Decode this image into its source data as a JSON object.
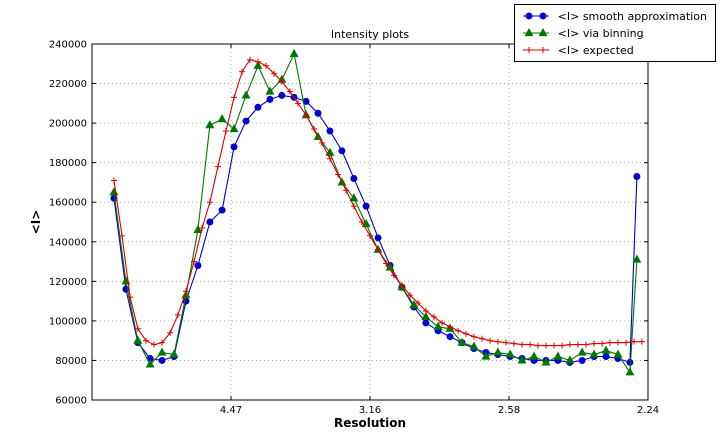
{
  "figure": {
    "title": "Intensity plots",
    "xlabel": "Resolution",
    "ylabel": "<I>"
  },
  "chart_data": {
    "type": "line",
    "title": "Intensity plots",
    "xlabel": "Resolution",
    "ylabel": "<I>",
    "grid": true,
    "legend_position": "upper right, outside plot top",
    "x_axis_note": "x axis is resolution on a 1/d^2 scale; tick labels give d in Angstrom",
    "xlim": [
      0.0,
      0.2
    ],
    "ylim": [
      60000,
      240000
    ],
    "xticks": [
      {
        "value": 0.05,
        "label": "4.47"
      },
      {
        "value": 0.1,
        "label": "3.16"
      },
      {
        "value": 0.15,
        "label": "2.58"
      },
      {
        "value": 0.2,
        "label": "2.24"
      }
    ],
    "yticks": [
      {
        "value": 60000,
        "label": "60000"
      },
      {
        "value": 80000,
        "label": "80000"
      },
      {
        "value": 100000,
        "label": "100000"
      },
      {
        "value": 120000,
        "label": "120000"
      },
      {
        "value": 140000,
        "label": "140000"
      },
      {
        "value": 160000,
        "label": "160000"
      },
      {
        "value": 180000,
        "label": "180000"
      },
      {
        "value": 200000,
        "label": "200000"
      },
      {
        "value": 220000,
        "label": "220000"
      },
      {
        "value": 240000,
        "label": "240000"
      }
    ],
    "series": [
      {
        "name": "<I> smooth approximation",
        "color": "#0000cc",
        "marker": "circle",
        "x": [
          0.0079,
          0.0122,
          0.0165,
          0.0209,
          0.0252,
          0.0295,
          0.0338,
          0.0381,
          0.0424,
          0.0468,
          0.0511,
          0.0554,
          0.0597,
          0.064,
          0.0683,
          0.0727,
          0.077,
          0.0813,
          0.0856,
          0.0899,
          0.0942,
          0.0986,
          0.1029,
          0.1072,
          0.1115,
          0.1158,
          0.1201,
          0.1245,
          0.1288,
          0.1331,
          0.1374,
          0.1417,
          0.146,
          0.1504,
          0.1547,
          0.159,
          0.1633,
          0.1676,
          0.1719,
          0.1763,
          0.1806,
          0.1849,
          0.1892,
          0.1935,
          0.196
        ],
        "y": [
          162000,
          116000,
          89000,
          81000,
          80000,
          82000,
          110000,
          128000,
          150000,
          156000,
          188000,
          201000,
          208000,
          212000,
          214000,
          213000,
          211000,
          205000,
          196000,
          186000,
          172000,
          158000,
          142000,
          128000,
          117000,
          107000,
          99000,
          95000,
          92000,
          89000,
          86000,
          84000,
          83000,
          82000,
          81000,
          80000,
          80000,
          80000,
          79000,
          80000,
          82000,
          82000,
          81000,
          79000,
          173000
        ]
      },
      {
        "name": "<I> via binning",
        "color": "#007700",
        "marker": "triangle",
        "x": [
          0.0079,
          0.0122,
          0.0165,
          0.0209,
          0.0252,
          0.0295,
          0.0338,
          0.0381,
          0.0424,
          0.0468,
          0.0511,
          0.0554,
          0.0597,
          0.064,
          0.0683,
          0.0727,
          0.077,
          0.0813,
          0.0856,
          0.0899,
          0.0942,
          0.0986,
          0.1029,
          0.1072,
          0.1115,
          0.1158,
          0.1201,
          0.1245,
          0.1288,
          0.1331,
          0.1374,
          0.1417,
          0.146,
          0.1504,
          0.1547,
          0.159,
          0.1633,
          0.1676,
          0.1719,
          0.1763,
          0.1806,
          0.1849,
          0.1892,
          0.1935,
          0.196
        ],
        "y": [
          165000,
          120000,
          90000,
          78000,
          84000,
          83000,
          113000,
          146000,
          199000,
          202000,
          197000,
          214000,
          229000,
          216000,
          222000,
          235000,
          204000,
          193000,
          185000,
          170000,
          162000,
          149000,
          136000,
          127000,
          117000,
          108000,
          102000,
          97000,
          96000,
          89000,
          87000,
          82000,
          84000,
          83000,
          80000,
          82000,
          79000,
          82000,
          80000,
          84000,
          83000,
          85000,
          83000,
          74000,
          131000
        ]
      },
      {
        "name": "<I> expected",
        "color": "#dd0000",
        "marker": "plus",
        "x": [
          0.0079,
          0.0108,
          0.0137,
          0.0165,
          0.0194,
          0.0223,
          0.0252,
          0.0281,
          0.0309,
          0.0338,
          0.0367,
          0.0396,
          0.0424,
          0.0453,
          0.0482,
          0.0511,
          0.054,
          0.0568,
          0.0597,
          0.0626,
          0.0655,
          0.0683,
          0.0712,
          0.0741,
          0.077,
          0.0799,
          0.0827,
          0.0856,
          0.0885,
          0.0914,
          0.0942,
          0.0971,
          0.1,
          0.1029,
          0.1058,
          0.1086,
          0.1115,
          0.1144,
          0.1173,
          0.1201,
          0.123,
          0.1259,
          0.1288,
          0.1317,
          0.1345,
          0.1374,
          0.1403,
          0.1432,
          0.146,
          0.1489,
          0.1518,
          0.1547,
          0.1576,
          0.1604,
          0.1633,
          0.1662,
          0.1691,
          0.1719,
          0.1748,
          0.1777,
          0.1806,
          0.1835,
          0.1863,
          0.1892,
          0.1921,
          0.195,
          0.1978
        ],
        "y": [
          171000,
          143000,
          112000,
          96000,
          90000,
          88000,
          89000,
          94000,
          103000,
          115000,
          130000,
          147000,
          160000,
          178000,
          196000,
          213000,
          226000,
          232000,
          231000,
          229000,
          225000,
          221000,
          216000,
          210000,
          204000,
          197000,
          190000,
          182000,
          174000,
          166000,
          158000,
          150000,
          143000,
          136000,
          129000,
          123000,
          118000,
          113000,
          109000,
          105000,
          102000,
          99000,
          97000,
          95000,
          93500,
          92000,
          91000,
          90000,
          89500,
          89000,
          88500,
          88000,
          88000,
          87500,
          87500,
          87500,
          87500,
          88000,
          88000,
          88000,
          88500,
          88500,
          89000,
          89000,
          89000,
          89500,
          89500
        ]
      }
    ]
  }
}
